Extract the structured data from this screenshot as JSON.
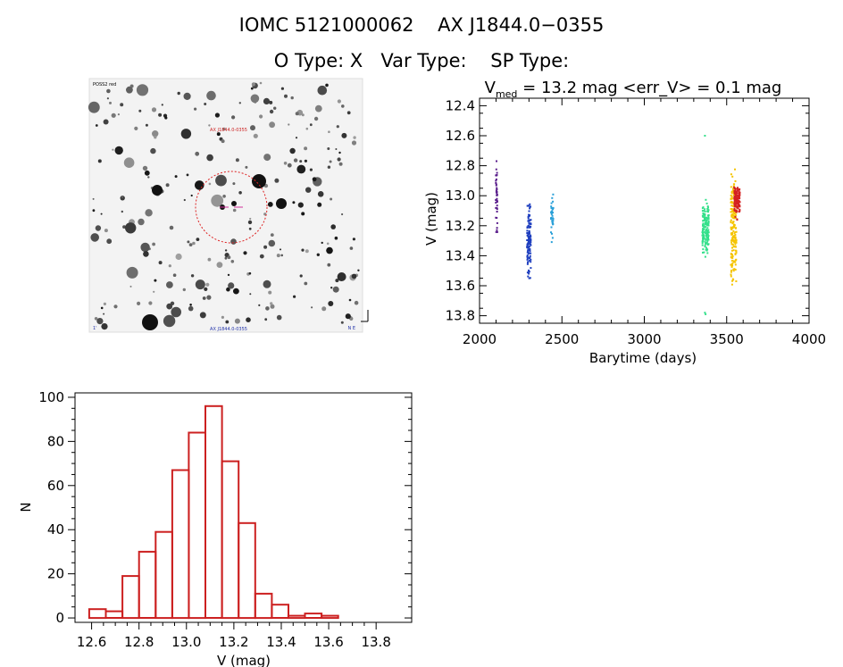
{
  "header": {
    "title_line1": "IOMC 5121000062    AX J1844.0−0355",
    "title_line2": "O Type: X   Var Type:    SP Type:"
  },
  "finder_image": {
    "label_top_left": "POSS2 red",
    "label_target": "AX J1844.0-0355",
    "label_bottom_center": "AX J1844.0-0355",
    "label_bottom_left": "1'",
    "label_bottom_right": "N E"
  },
  "chart_data": [
    {
      "type": "scatter",
      "title": "V_med = 13.2 mag <err_V> = 0.1 mag",
      "title_parts": {
        "main": "V",
        "sub": "med",
        "rest": " = 13.2 mag <err_V> = 0.1 mag"
      },
      "xlabel": "Barytime (days)",
      "ylabel": "V (mag)",
      "xlim": [
        2000,
        4000
      ],
      "ylim": [
        13.85,
        12.35
      ],
      "y_inverted": true,
      "xticks": [
        2000,
        2500,
        3000,
        3500,
        4000
      ],
      "yticks": [
        12.4,
        12.6,
        12.8,
        13.0,
        13.2,
        13.4,
        13.6,
        13.8
      ],
      "series": [
        {
          "color": "#5a1e8c",
          "x_range": [
            2098,
            2108
          ],
          "y_range": [
            12.62,
            13.25
          ],
          "y_center": 13.0,
          "count": 40
        },
        {
          "color": "#1f3fbf",
          "x_range": [
            2288,
            2312
          ],
          "y_range": [
            12.98,
            13.6
          ],
          "y_center": 13.3,
          "count": 120
        },
        {
          "color": "#2aa0d8",
          "x_range": [
            2432,
            2448
          ],
          "y_range": [
            12.93,
            13.35
          ],
          "y_center": 13.15,
          "count": 35
        },
        {
          "color": "#33e08a",
          "x_range": [
            3352,
            3392
          ],
          "y_range": [
            12.96,
            13.42
          ],
          "y_center": 13.2,
          "count": 140,
          "outliers": [
            [
              3368,
              12.6
            ],
            [
              3368,
              13.78
            ],
            [
              3372,
              13.79
            ]
          ]
        },
        {
          "color": "#f5c400",
          "x_range": [
            3525,
            3560
          ],
          "y_range": [
            12.73,
            13.75
          ],
          "y_center": 13.2,
          "count": 180
        },
        {
          "color": "#d42020",
          "x_range": [
            3545,
            3580
          ],
          "y_range": [
            12.88,
            13.18
          ],
          "y_center": 13.03,
          "count": 120
        }
      ]
    },
    {
      "type": "bar",
      "title": "",
      "xlabel": "V (mag)",
      "ylabel": "N",
      "bin_width": 0.07,
      "bin_start": 12.59,
      "values": [
        4,
        3,
        19,
        30,
        39,
        67,
        84,
        96,
        71,
        43,
        11,
        6,
        1,
        2,
        1
      ],
      "xlim": [
        12.53,
        13.95
      ],
      "ylim": [
        -2,
        102
      ],
      "xticks": [
        12.6,
        12.8,
        13.0,
        13.2,
        13.4,
        13.6,
        13.8
      ],
      "yticks": [
        0,
        20,
        40,
        60,
        80,
        100
      ],
      "bar_color": "#cc2020"
    }
  ]
}
